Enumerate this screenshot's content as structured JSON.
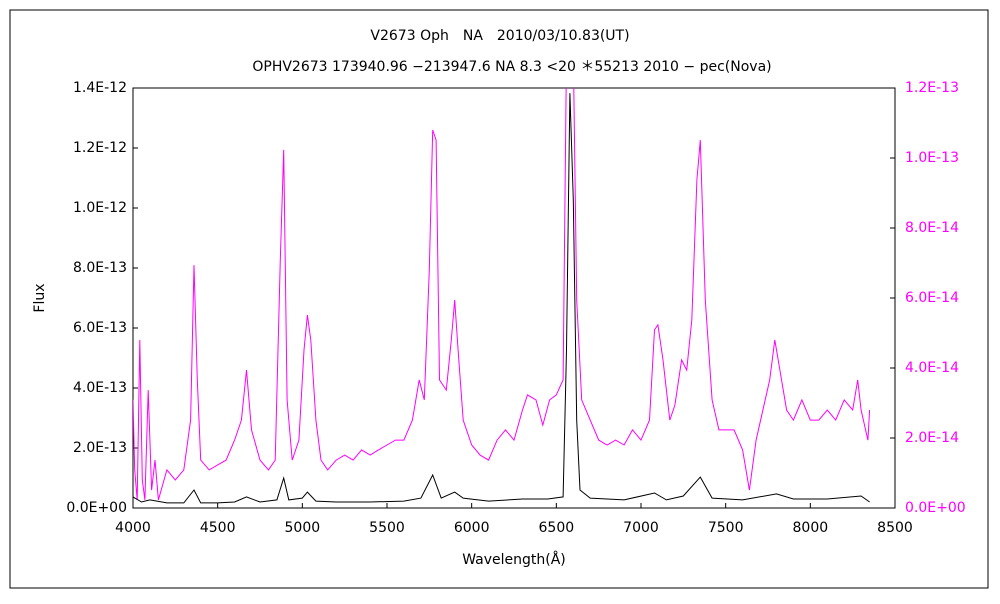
{
  "chart_data": {
    "type": "line",
    "title": "V2673 Oph　NA　2010/03/10.83(UT)",
    "subtitle": "OPHV2673 173940.96 −213947.6 NA 8.3 <20 ＊55213 2010 − pec(Nova)",
    "x_label": "Wavelength(Å)",
    "y_label": "Flux",
    "xlim": [
      4000,
      8500
    ],
    "xticks": [
      4000,
      4500,
      5000,
      5500,
      6000,
      6500,
      7000,
      7500,
      8000,
      8500
    ],
    "ylim": [
      0,
      1.4e-12
    ],
    "yticks": [
      {
        "value": 0,
        "label": "0.0E+00"
      },
      {
        "value": 2e-13,
        "label": "2.0E-13"
      },
      {
        "value": 4e-13,
        "label": "4.0E-13"
      },
      {
        "value": 6e-13,
        "label": "6.0E-13"
      },
      {
        "value": 8e-13,
        "label": "8.0E-13"
      },
      {
        "value": 1e-12,
        "label": "1.0E-12"
      },
      {
        "value": 1.2e-12,
        "label": "1.2E-12"
      },
      {
        "value": 1.4e-12,
        "label": "1.4E-12"
      }
    ],
    "y2lim": [
      0,
      1.2e-13
    ],
    "y2ticks": [
      {
        "value": 0,
        "label": "0.0E+00"
      },
      {
        "value": 2e-14,
        "label": "2.0E-14"
      },
      {
        "value": 4e-14,
        "label": "4.0E-14"
      },
      {
        "value": 6e-14,
        "label": "6.0E-14"
      },
      {
        "value": 8e-14,
        "label": "8.0E-14"
      },
      {
        "value": 1e-13,
        "label": "1.0E-13"
      },
      {
        "value": 1.2e-13,
        "label": "1.2E-13"
      }
    ],
    "series": [
      {
        "color": "#ff00ff",
        "axis": "y2",
        "x": [
          4000,
          4010,
          4025,
          4040,
          4055,
          4070,
          4090,
          4110,
          4130,
          4150,
          4200,
          4250,
          4300,
          4340,
          4360,
          4380,
          4400,
          4450,
          4500,
          4550,
          4600,
          4640,
          4670,
          4700,
          4750,
          4800,
          4840,
          4870,
          4890,
          4910,
          4940,
          4980,
          5010,
          5030,
          5050,
          5080,
          5110,
          5150,
          5200,
          5250,
          5300,
          5350,
          5400,
          5450,
          5500,
          5550,
          5600,
          5650,
          5690,
          5720,
          5750,
          5770,
          5790,
          5810,
          5850,
          5880,
          5900,
          5920,
          5950,
          6000,
          6050,
          6100,
          6150,
          6200,
          6250,
          6300,
          6330,
          6380,
          6420,
          6460,
          6500,
          6540,
          6560,
          6580,
          6600,
          6620,
          6650,
          6700,
          6750,
          6800,
          6850,
          6900,
          6950,
          7000,
          7050,
          7080,
          7100,
          7130,
          7170,
          7200,
          7240,
          7270,
          7300,
          7330,
          7350,
          7380,
          7420,
          7460,
          7500,
          7550,
          7600,
          7640,
          7680,
          7720,
          7760,
          7790,
          7820,
          7860,
          7900,
          7950,
          8000,
          8050,
          8100,
          8150,
          8200,
          8250,
          8280,
          8300,
          8340,
          8350
        ],
        "values": [
          3.09e-14,
          1.09e-14,
          2.3e-15,
          4.8e-14,
          8e-15,
          2.3e-15,
          3.37e-14,
          5.1e-15,
          1.37e-14,
          2.3e-15,
          1.09e-14,
          8e-15,
          1.09e-14,
          2.51e-14,
          6.94e-14,
          3.66e-14,
          1.37e-14,
          1.09e-14,
          1.23e-14,
          1.37e-14,
          1.94e-14,
          2.51e-14,
          3.94e-14,
          2.23e-14,
          1.37e-14,
          1.09e-14,
          1.37e-14,
          7.09e-14,
          1.023e-13,
          3.09e-14,
          1.37e-14,
          1.94e-14,
          4.51e-14,
          5.51e-14,
          4.8e-14,
          2.51e-14,
          1.37e-14,
          1.09e-14,
          1.37e-14,
          1.51e-14,
          1.37e-14,
          1.66e-14,
          1.51e-14,
          1.66e-14,
          1.8e-14,
          1.94e-14,
          1.94e-14,
          2.51e-14,
          3.66e-14,
          3.09e-14,
          6.8e-14,
          1.08e-13,
          1.051e-13,
          3.66e-14,
          3.37e-14,
          4.8e-14,
          5.94e-14,
          4.51e-14,
          2.51e-14,
          1.8e-14,
          1.51e-14,
          1.37e-14,
          1.94e-14,
          2.23e-14,
          1.94e-14,
          2.8e-14,
          3.23e-14,
          3.09e-14,
          2.37e-14,
          3.09e-14,
          3.23e-14,
          3.66e-14,
          1.3e-13,
          1.3e-13,
          1.3e-13,
          5.94e-14,
          3.09e-14,
          2.51e-14,
          1.94e-14,
          1.8e-14,
          1.94e-14,
          1.8e-14,
          2.23e-14,
          1.94e-14,
          2.51e-14,
          5.09e-14,
          5.23e-14,
          4.23e-14,
          2.51e-14,
          2.94e-14,
          4.23e-14,
          3.94e-14,
          5.37e-14,
          9.37e-14,
          1.051e-13,
          5.94e-14,
          3.09e-14,
          2.23e-14,
          2.23e-14,
          2.23e-14,
          1.66e-14,
          5.1e-15,
          1.94e-14,
          2.8e-14,
          3.66e-14,
          4.8e-14,
          3.94e-14,
          2.8e-14,
          2.51e-14,
          3.09e-14,
          2.51e-14,
          2.51e-14,
          2.8e-14,
          2.51e-14,
          3.09e-14,
          2.8e-14,
          3.66e-14,
          2.8e-14,
          1.94e-14,
          2.8e-14
        ]
      },
      {
        "color": "#000000",
        "axis": "y",
        "x": [
          4000,
          4050,
          4100,
          4200,
          4300,
          4360,
          4400,
          4500,
          4600,
          4670,
          4750,
          4850,
          4890,
          4920,
          5000,
          5030,
          5080,
          5200,
          5400,
          5600,
          5700,
          5770,
          5820,
          5900,
          5950,
          6100,
          6300,
          6450,
          6540,
          6560,
          6580,
          6600,
          6620,
          6640,
          6700,
          6900,
          7080,
          7150,
          7250,
          7350,
          7420,
          7600,
          7800,
          7900,
          8100,
          8300,
          8350
        ],
        "values": [
          3.7e-14,
          2e-14,
          2.7e-14,
          1.7e-14,
          1.7e-14,
          6e-14,
          1.7e-14,
          1.7e-14,
          2e-14,
          3.7e-14,
          2e-14,
          2.7e-14,
          1e-13,
          2.7e-14,
          3.3e-14,
          5.3e-14,
          2.3e-14,
          2e-14,
          2e-14,
          2.3e-14,
          3.3e-14,
          1.1e-13,
          3.3e-14,
          5.3e-14,
          3.3e-14,
          2.3e-14,
          3e-14,
          3e-14,
          3.7e-14,
          5.27e-13,
          1.383e-12,
          1.027e-12,
          2.93e-13,
          6e-14,
          3.3e-14,
          2.7e-14,
          5e-14,
          2.7e-14,
          4e-14,
          1.03e-13,
          3.3e-14,
          2.7e-14,
          4.7e-14,
          3e-14,
          3e-14,
          4e-14,
          2e-14
        ]
      }
    ]
  }
}
